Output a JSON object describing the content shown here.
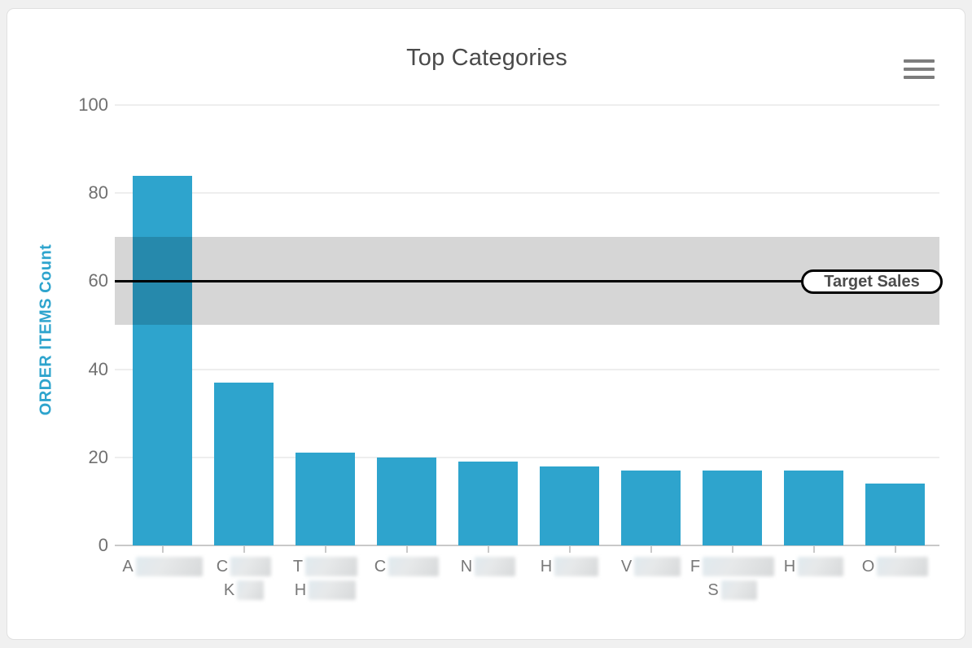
{
  "page": {
    "background": "#f0f0f0",
    "card_background": "#ffffff"
  },
  "header": {
    "menu_icon": "hamburger-icon"
  },
  "chart_data": {
    "type": "bar",
    "title": "Top Categories",
    "xlabel": "",
    "ylabel": "ORDER ITEMS Count",
    "ylim": [
      0,
      100
    ],
    "yticks": [
      0,
      20,
      40,
      60,
      80,
      100
    ],
    "grid": true,
    "bar_color": "#2ea4cd",
    "band_color": "rgba(0,0,0,0.16)",
    "values": [
      84,
      37,
      21,
      20,
      19,
      18,
      17,
      17,
      17,
      14
    ],
    "categories": [
      {
        "lines": [
          {
            "visible": "A",
            "redacted_w": 82
          }
        ]
      },
      {
        "lines": [
          {
            "visible": "C",
            "redacted_w": 50
          },
          {
            "visible": "K",
            "redacted_w": 33
          }
        ]
      },
      {
        "lines": [
          {
            "visible": "T",
            "redacted_w": 64
          },
          {
            "visible": "H",
            "redacted_w": 58
          }
        ]
      },
      {
        "lines": [
          {
            "visible": "C",
            "redacted_w": 62
          }
        ]
      },
      {
        "lines": [
          {
            "visible": "N",
            "redacted_w": 50
          }
        ]
      },
      {
        "lines": [
          {
            "visible": "H",
            "redacted_w": 54
          }
        ]
      },
      {
        "lines": [
          {
            "visible": "V",
            "redacted_w": 57
          }
        ]
      },
      {
        "lines": [
          {
            "visible": "F",
            "redacted_w": 88
          },
          {
            "visible": "S",
            "redacted_w": 44
          }
        ]
      },
      {
        "lines": [
          {
            "visible": "H",
            "redacted_w": 56
          }
        ]
      },
      {
        "lines": [
          {
            "visible": "O",
            "redacted_w": 63
          }
        ]
      }
    ],
    "target": {
      "band_from": 50,
      "band_to": 70,
      "line_value": 60,
      "label": "Target Sales"
    },
    "note": "category names are blurred/redacted; only first letters visible"
  }
}
